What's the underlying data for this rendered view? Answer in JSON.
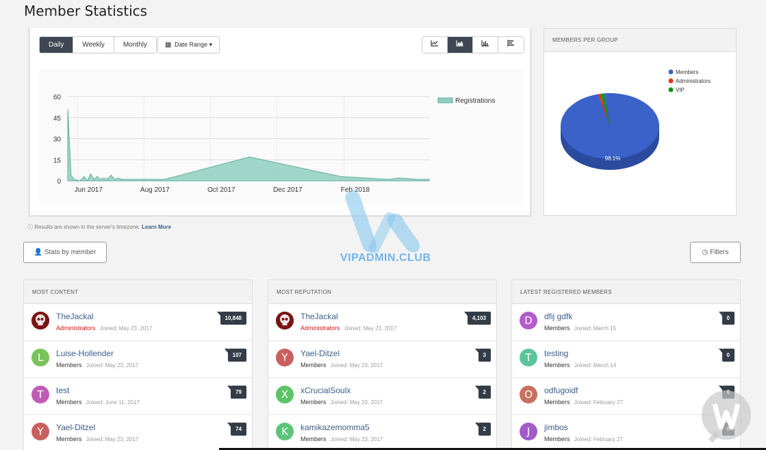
{
  "page": {
    "title": "Member Statistics"
  },
  "period_tabs": [
    "Daily",
    "Weekly",
    "Monthly"
  ],
  "date_range": {
    "label": "Date Range ▾",
    "icon": "calendar-icon"
  },
  "chart_types": [
    {
      "icon": "line-chart-icon"
    },
    {
      "icon": "area-chart-icon",
      "active": true
    },
    {
      "icon": "bar-chart-icon"
    },
    {
      "icon": "horizontal-bar-chart-icon"
    }
  ],
  "chart_data": [
    {
      "type": "area",
      "x_ticks": [
        "Jun 2017",
        "Aug 2017",
        "Oct 2017",
        "Dec 2017",
        "Feb 2018"
      ],
      "y_ticks": [
        "60",
        "45",
        "30",
        "15",
        "0"
      ],
      "ylim": [
        0,
        60
      ],
      "xlim": [
        "2017-05-23",
        "2018-04-20"
      ],
      "series": [
        {
          "name": "Registrations",
          "color": "#8fcfc0",
          "points": [
            [
              "2017-05-23",
              51
            ],
            [
              "2017-05-26",
              4
            ],
            [
              "2017-05-29",
              1
            ],
            [
              "2017-06-03",
              0
            ],
            [
              "2017-06-07",
              3
            ],
            [
              "2017-06-10",
              0
            ],
            [
              "2017-06-13",
              5
            ],
            [
              "2017-06-16",
              1
            ],
            [
              "2017-06-19",
              3
            ],
            [
              "2017-06-22",
              1
            ],
            [
              "2017-06-25",
              2
            ],
            [
              "2017-06-28",
              1
            ],
            [
              "2017-07-02",
              4
            ],
            [
              "2017-07-05",
              1
            ],
            [
              "2017-07-08",
              2
            ],
            [
              "2017-07-12",
              1
            ],
            [
              "2017-07-20",
              1
            ],
            [
              "2017-08-20",
              1
            ],
            [
              "2017-11-06",
              17
            ],
            [
              "2018-01-29",
              3
            ],
            [
              "2018-03-14",
              1
            ],
            [
              "2018-03-23",
              2
            ],
            [
              "2018-04-10",
              1
            ],
            [
              "2018-04-20",
              1
            ]
          ]
        }
      ],
      "legend_position": "right",
      "grid": true
    },
    {
      "type": "pie",
      "legend": [
        {
          "name": "Members",
          "color": "#3a62c9"
        },
        {
          "name": "Administrators",
          "color": "#dc3912"
        },
        {
          "name": "VIP",
          "color": "#109618"
        }
      ],
      "values": [
        98.1,
        0.8,
        1.1
      ],
      "slice_label": "98.1%"
    }
  ],
  "timezone_note": {
    "text": "Results are shown in the server's timezone.",
    "link": "Learn More"
  },
  "groups_panel": {
    "title": "Members per group"
  },
  "stats_by_member": "Stats by member",
  "filters": "Filters",
  "watermark": "VIPADMIN.CLUB",
  "lists": [
    {
      "title": "Most content",
      "rows": [
        {
          "name": "TheJackal",
          "group": "Administrators",
          "joined": "Joined: May 23, 2017",
          "count": "10,848",
          "avatar": "skull",
          "color": "#8b1a1a",
          "admin": true
        },
        {
          "name": "Luise-Hollender",
          "group": "Members",
          "joined": "Joined: May 23, 2017",
          "count": "107",
          "avatar": "L",
          "color": "#7ac35c"
        },
        {
          "name": "test",
          "group": "Members",
          "joined": "Joined: June 11, 2017",
          "count": "79",
          "avatar": "T",
          "color": "#c15cb5"
        },
        {
          "name": "Yael-Ditzel",
          "group": "Members",
          "joined": "Joined: May 23, 2017",
          "count": "74",
          "avatar": "Y",
          "color": "#c86060"
        }
      ]
    },
    {
      "title": "Most reputation",
      "rows": [
        {
          "name": "TheJackal",
          "group": "Administrators",
          "joined": "Joined: May 23, 2017",
          "count": "4,103",
          "avatar": "skull",
          "color": "#8b1a1a",
          "admin": true
        },
        {
          "name": "Yael-Ditzel",
          "group": "Members",
          "joined": "Joined: May 23, 2017",
          "count": "3",
          "avatar": "Y",
          "color": "#c86060"
        },
        {
          "name": "xCrucialSoulx",
          "group": "Members",
          "joined": "Joined: May 23, 2017",
          "count": "2",
          "avatar": "X",
          "color": "#5cc466"
        },
        {
          "name": "kamikazemomma5",
          "group": "Members",
          "joined": "Joined: May 23, 2017",
          "count": "2",
          "avatar": "K",
          "color": "#5cc47a"
        }
      ]
    },
    {
      "title": "Latest registered members",
      "rows": [
        {
          "name": "dfij gdfk",
          "group": "Members",
          "joined": "Joined: March 15",
          "count": "0",
          "avatar": "D",
          "color": "#b25cc9"
        },
        {
          "name": "testing",
          "group": "Members",
          "joined": "Joined: March 14",
          "count": "0",
          "avatar": "T",
          "color": "#5cc49a"
        },
        {
          "name": "odfugoidf",
          "group": "Members",
          "joined": "Joined: February 27",
          "count": "0",
          "avatar": "O",
          "color": "#c87060"
        },
        {
          "name": "jimbos",
          "group": "Members",
          "joined": "Joined: February 27",
          "count": "0",
          "avatar": "J",
          "color": "#a25cc9"
        }
      ]
    }
  ]
}
